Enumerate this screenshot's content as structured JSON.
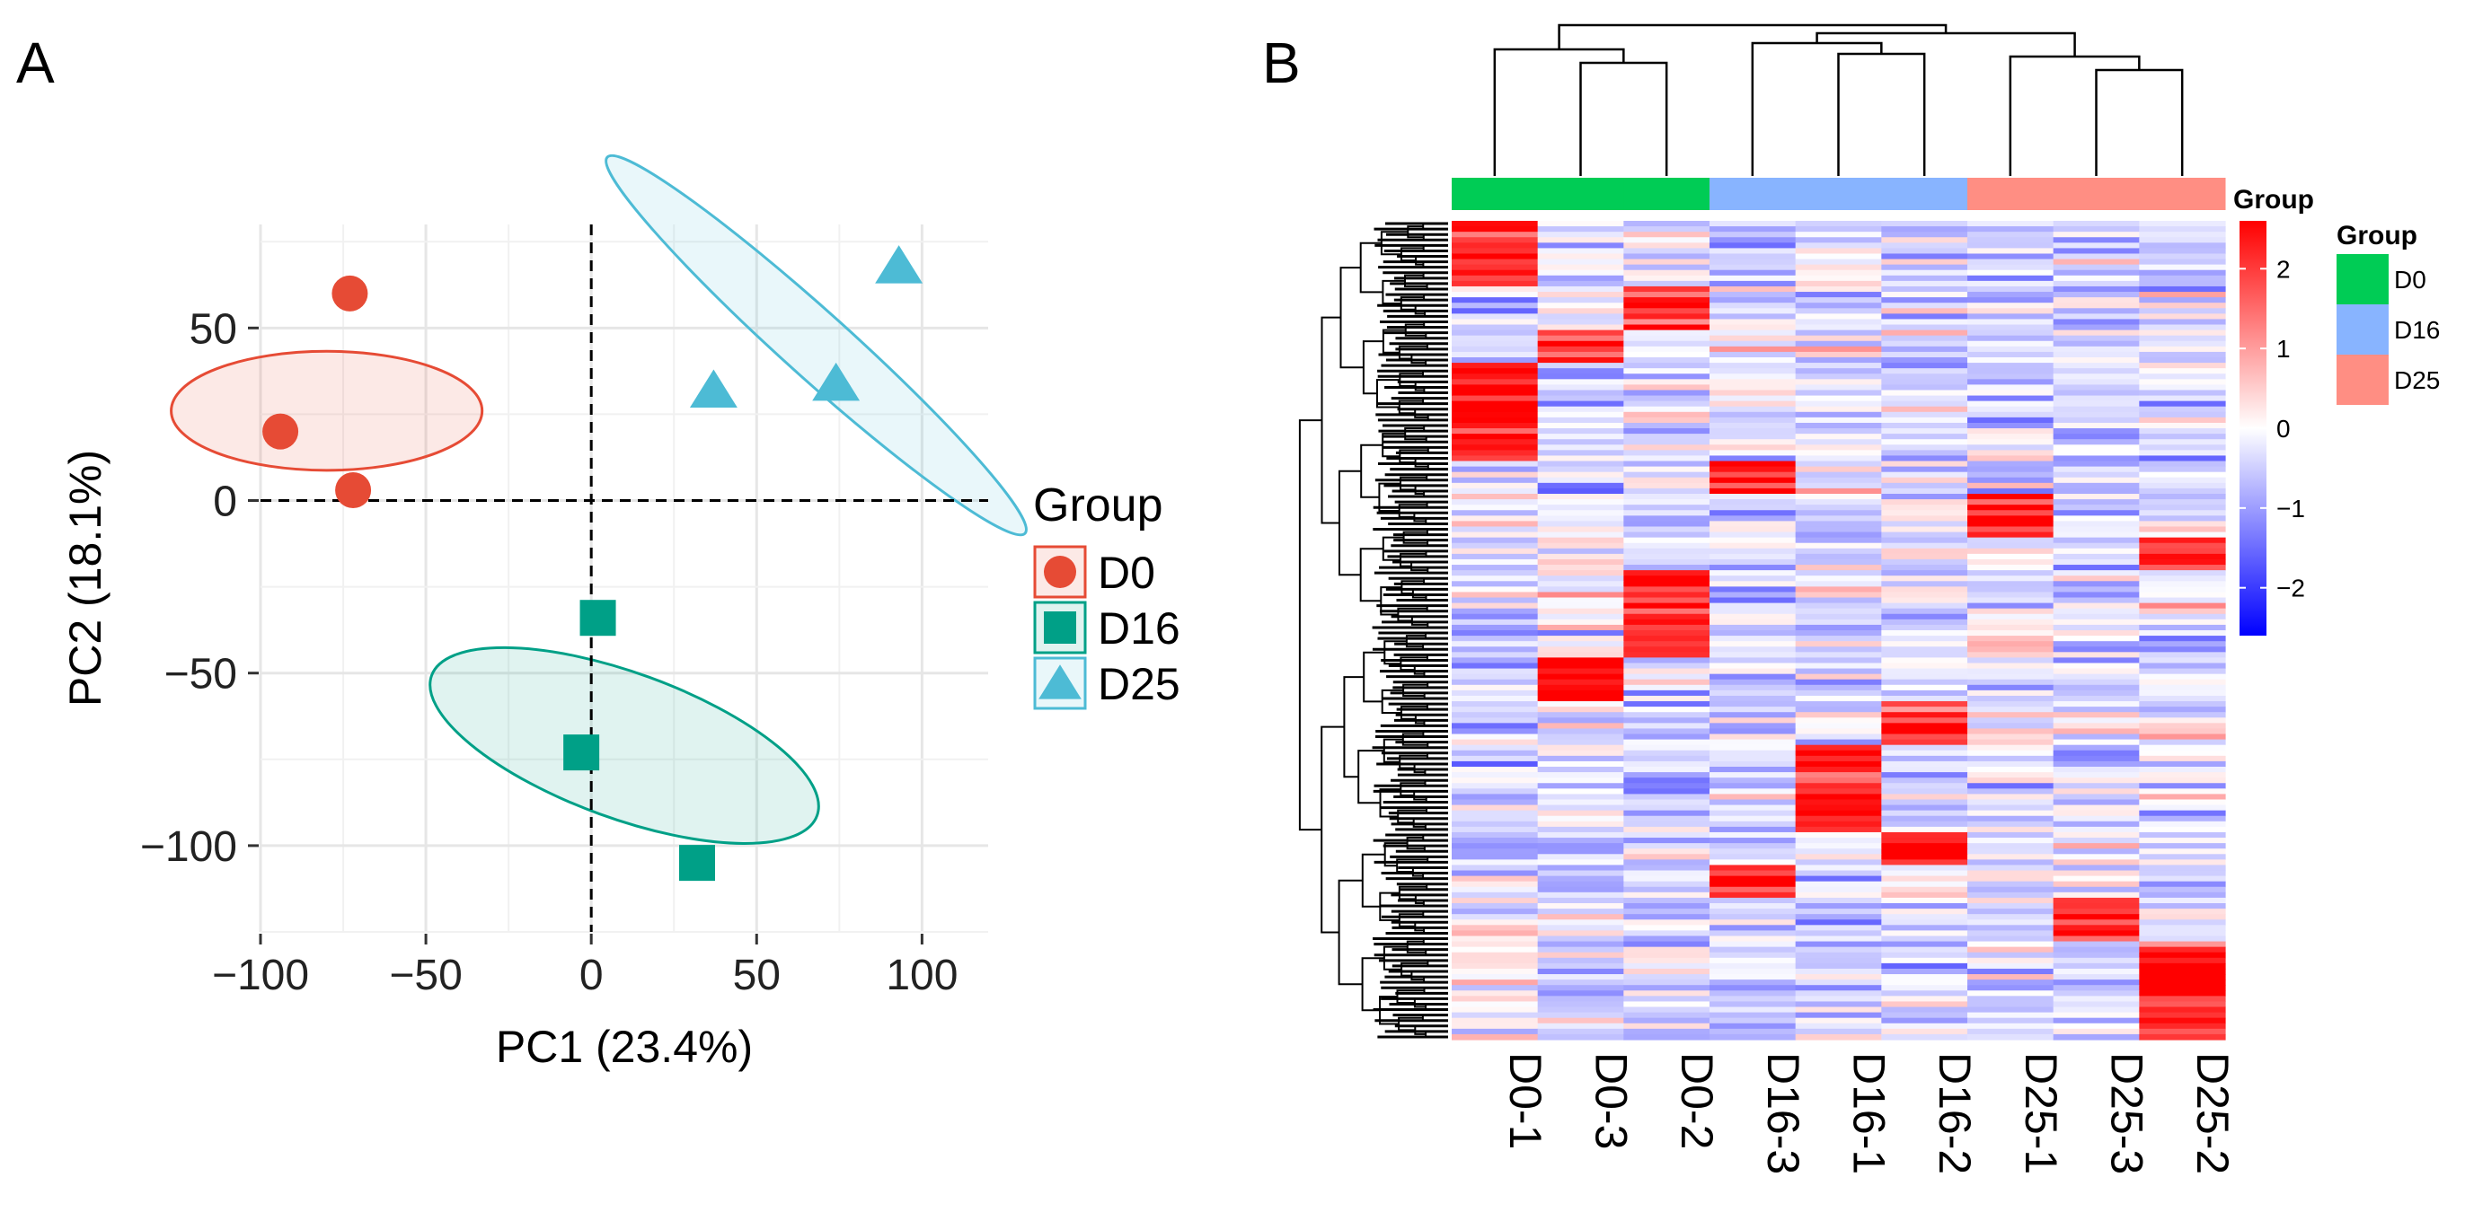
{
  "panels": {
    "a_label": "A",
    "b_label": "B"
  },
  "colors": {
    "D0": "#E64B35",
    "D16": "#00A087",
    "D25": "#4DBBD5",
    "anno_D0": "#00CC55",
    "anno_D16": "#88B4FF",
    "anno_D25": "#FF8E83",
    "heat_low": "#0000FF",
    "heat_mid": "#FFFFFF",
    "heat_high": "#FF0000"
  },
  "chart_data": [
    {
      "type": "scatter",
      "title": "",
      "xlabel": "PC1 (23.4%)",
      "ylabel": "PC2 (18.1%)",
      "xlim": [
        -100,
        120
      ],
      "ylim": [
        -125,
        80
      ],
      "xticks": [
        -100,
        -50,
        0,
        50,
        100
      ],
      "xtick_labels": [
        "−100",
        "−50",
        "0",
        "50",
        "100"
      ],
      "yticks": [
        50,
        0,
        -50,
        -100
      ],
      "ytick_labels": [
        "50",
        "0",
        "−50",
        "−100"
      ],
      "grid": true,
      "reference_lines": {
        "x": 0,
        "y": 0,
        "style": "dashed"
      },
      "legend": {
        "title": "Group",
        "position": "right"
      },
      "series": [
        {
          "name": "D0",
          "marker": "circle",
          "points": [
            {
              "x": -73,
              "y": 60
            },
            {
              "x": -94,
              "y": 20
            },
            {
              "x": -72,
              "y": 3
            }
          ],
          "ellipse": {
            "cx": -80,
            "cy": 26,
            "rx": 18,
            "ry": 47,
            "angle": 90
          }
        },
        {
          "name": "D16",
          "marker": "square",
          "points": [
            {
              "x": 2,
              "y": -34
            },
            {
              "x": -3,
              "y": -73
            },
            {
              "x": 32,
              "y": -105
            }
          ],
          "ellipse": {
            "cx": 10,
            "cy": -71,
            "rx": 22,
            "ry": 62,
            "angle": 110
          }
        },
        {
          "name": "D25",
          "marker": "triangle",
          "points": [
            {
              "x": 93,
              "y": 68
            },
            {
              "x": 37,
              "y": 32
            },
            {
              "x": 74,
              "y": 34
            }
          ],
          "ellipse": {
            "cx": 68,
            "cy": 45,
            "rx": 85,
            "ry": 10,
            "angle": 42
          }
        }
      ]
    },
    {
      "type": "heatmap",
      "title": "",
      "columns": [
        "D0-1",
        "D0-3",
        "D0-2",
        "D16-3",
        "D16-1",
        "D16-2",
        "D25-1",
        "D25-3",
        "D25-2"
      ],
      "column_groups": [
        "D0",
        "D0",
        "D0",
        "D16",
        "D16",
        "D16",
        "D25",
        "D25",
        "D25"
      ],
      "annotation_title": "Group",
      "annotation_legend": {
        "title": "Group",
        "items": [
          "D0",
          "D16",
          "D25"
        ]
      },
      "colorbar": {
        "range": [
          -2.6,
          2.6
        ],
        "ticks": [
          2,
          1,
          0,
          -1,
          -2
        ],
        "tick_labels": [
          "2",
          "1",
          "0",
          "−1",
          "−2"
        ]
      },
      "n_rows_rendered": 150,
      "row_dendrogram": true,
      "column_dendrogram": "((D0-1,(D0-3,D0-2)),((D16-3,(D16-1,D16-2)),(D25-1,(D25-3,D25-2))))",
      "seed": 20240
    }
  ]
}
